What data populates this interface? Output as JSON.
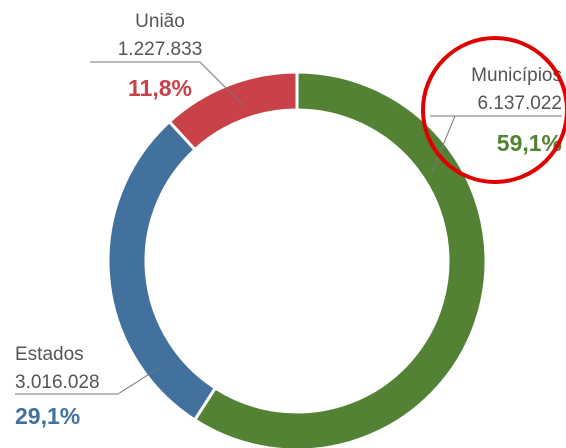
{
  "chart_data": {
    "type": "donut",
    "categories": [
      "Municípios",
      "Estados",
      "União"
    ],
    "values": [
      59.1,
      29.1,
      11.8
    ],
    "value_labels": [
      "59,1%",
      "29,1%",
      "11,8%"
    ],
    "amounts": [
      6137022,
      3016028,
      1227833
    ],
    "amount_labels": [
      "6.137.022",
      "3.016.028",
      "1.227.833"
    ],
    "colors": [
      "#548235",
      "#41719c",
      "#c9424a"
    ]
  }
}
